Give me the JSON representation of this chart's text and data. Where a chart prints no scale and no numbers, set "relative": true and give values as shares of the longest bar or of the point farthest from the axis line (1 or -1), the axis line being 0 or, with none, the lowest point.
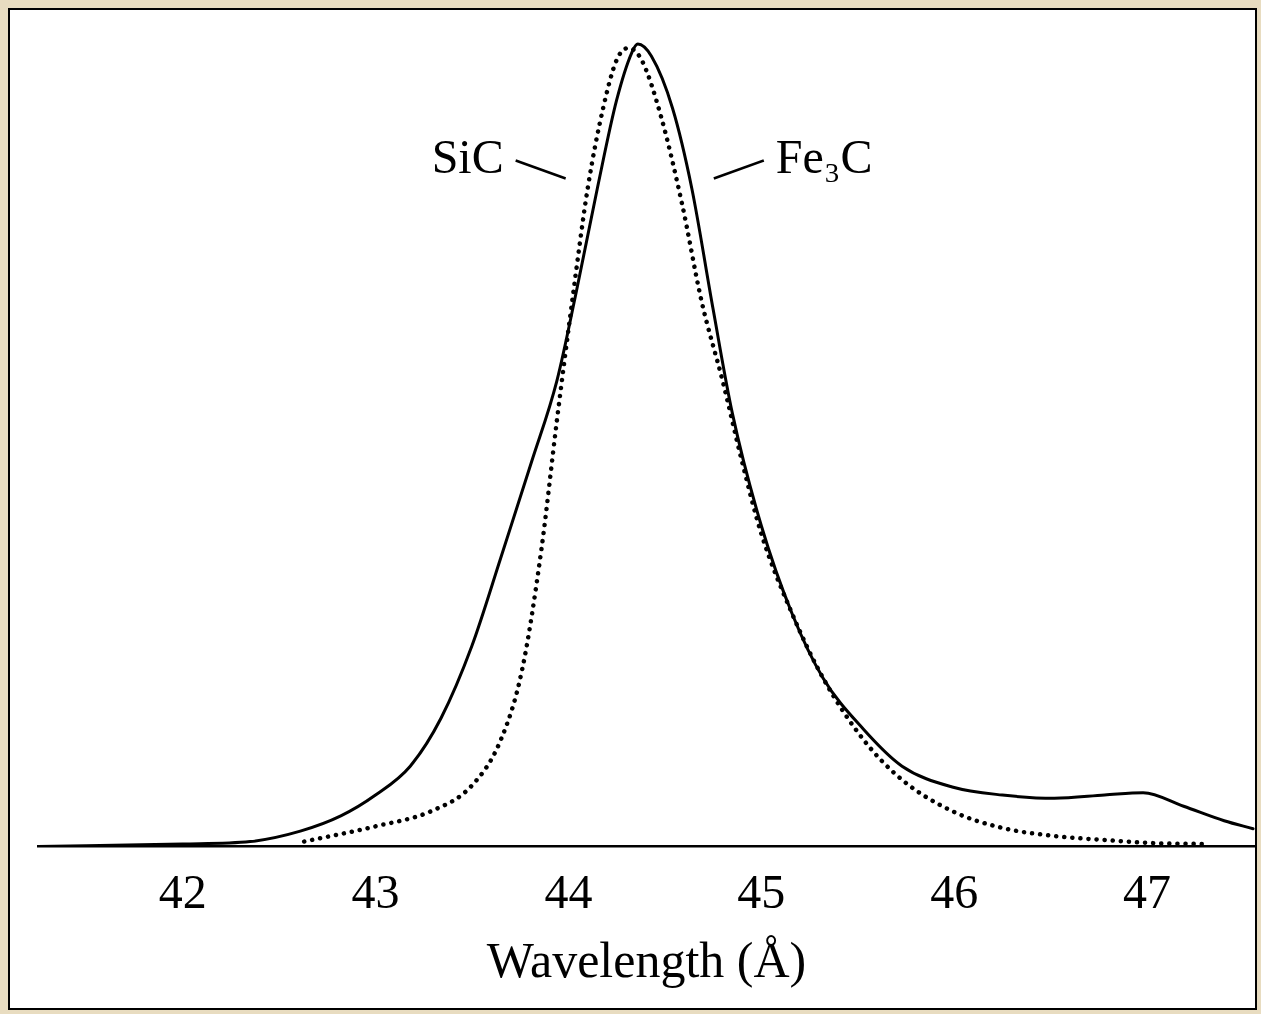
{
  "chart_data": {
    "type": "line",
    "xlabel": "Wavelength (Å)",
    "relative": true,
    "grid": false,
    "marker": "none",
    "xlim": [
      41.25,
      47.56
    ],
    "xticks": [
      42,
      43,
      44,
      45,
      46,
      47
    ],
    "series": [
      {
        "name": "SiC",
        "color": "#000000",
        "line_style": "dotted",
        "x": [
          42.63,
          43.0,
          43.29,
          43.5,
          43.65,
          43.76,
          43.86,
          43.94,
          44.02,
          44.1,
          44.18,
          44.25,
          44.31,
          44.38,
          44.48,
          44.59,
          44.69,
          44.8,
          44.9,
          45.0,
          45.16,
          45.32,
          45.53,
          45.73,
          45.99,
          46.25,
          46.52,
          46.78,
          47.04,
          47.3
        ],
        "values": [
          0.006,
          0.025,
          0.044,
          0.076,
          0.133,
          0.22,
          0.37,
          0.53,
          0.68,
          0.82,
          0.92,
          0.98,
          0.995,
          0.98,
          0.91,
          0.8,
          0.68,
          0.58,
          0.48,
          0.39,
          0.29,
          0.21,
          0.133,
          0.083,
          0.044,
          0.023,
          0.013,
          0.008,
          0.004,
          0.003
        ]
      },
      {
        "name": "Fe₃C",
        "color": "#000000",
        "line_style": "solid",
        "x": [
          41.25,
          42.0,
          42.35,
          42.61,
          42.82,
          43.0,
          43.18,
          43.34,
          43.5,
          43.65,
          43.81,
          43.94,
          44.04,
          44.15,
          44.25,
          44.33,
          44.36,
          44.43,
          44.54,
          44.64,
          44.75,
          44.85,
          45.0,
          45.16,
          45.32,
          45.53,
          45.73,
          45.99,
          46.25,
          46.52,
          46.78,
          46.98,
          47.19,
          47.4,
          47.55
        ],
        "values": [
          0,
          0.003,
          0.006,
          0.019,
          0.038,
          0.064,
          0.1,
          0.16,
          0.25,
          0.36,
          0.48,
          0.58,
          0.69,
          0.82,
          0.93,
          0.99,
          1.0,
          0.985,
          0.92,
          0.82,
          0.67,
          0.54,
          0.4,
          0.29,
          0.21,
          0.146,
          0.1,
          0.074,
          0.064,
          0.06,
          0.064,
          0.067,
          0.05,
          0.032,
          0.022
        ]
      }
    ]
  }
}
